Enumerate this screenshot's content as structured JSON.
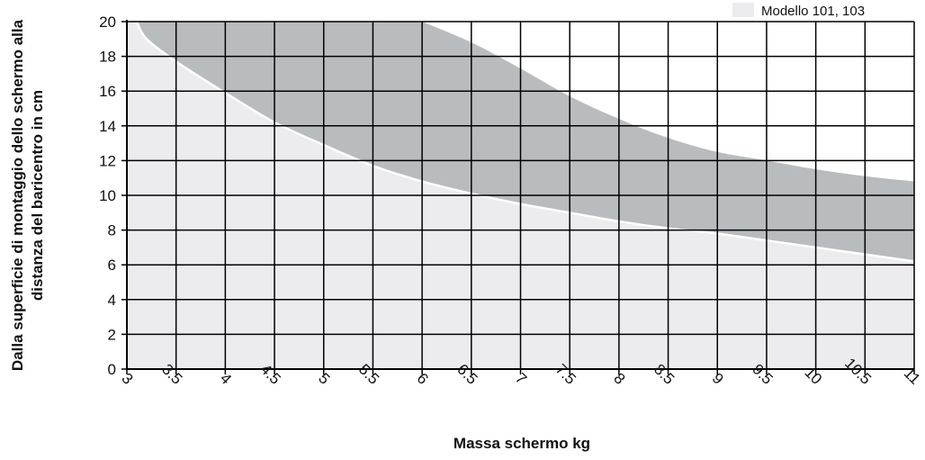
{
  "chart_data": {
    "type": "area",
    "xlabel": "Massa schermo kg",
    "ylabel_lines": [
      "Dalla superficie di montaggio dello schermo alla",
      "distanza del baricentro in cm"
    ],
    "xlim": [
      3,
      11
    ],
    "ylim": [
      0,
      20
    ],
    "x_ticks": [
      "3",
      "3.5",
      "4",
      "4.5",
      "5",
      "5.5",
      "6",
      "6.5",
      "7",
      "7.5",
      "8",
      "8.5",
      "9",
      "9.5",
      "10",
      "10.5",
      "11"
    ],
    "y_ticks": [
      "0",
      "2",
      "4",
      "6",
      "8",
      "10",
      "12",
      "14",
      "16",
      "18",
      "20"
    ],
    "grid": true,
    "legend": "top-right",
    "colors": {
      "light": "#ECECEF",
      "dark": "#B8BCBF",
      "grid": "#000000",
      "boundary": "#ffffff"
    },
    "series": [
      {
        "name": "Modello 101, 103",
        "region": "light",
        "upper_boundary": [
          [
            3.1,
            20
          ],
          [
            3.2,
            19.0
          ],
          [
            3.5,
            17.7
          ],
          [
            4,
            15.9
          ],
          [
            4.5,
            14.2
          ],
          [
            5,
            12.9
          ],
          [
            5.5,
            11.7
          ],
          [
            6,
            10.8
          ],
          [
            6.5,
            10.1
          ],
          [
            7,
            9.5
          ],
          [
            7.5,
            9.0
          ],
          [
            8,
            8.5
          ],
          [
            8.5,
            8.1
          ],
          [
            9,
            7.8
          ],
          [
            9.5,
            7.4
          ],
          [
            10,
            7.0
          ],
          [
            10.5,
            6.6
          ],
          [
            11,
            6.2
          ]
        ]
      },
      {
        "region": "dark",
        "upper_boundary": [
          [
            6,
            20
          ],
          [
            6.5,
            18.8
          ],
          [
            7,
            17.3
          ],
          [
            7.5,
            15.7
          ],
          [
            8,
            14.4
          ],
          [
            8.5,
            13.3
          ],
          [
            9,
            12.5
          ],
          [
            9.5,
            12.0
          ],
          [
            10,
            11.5
          ],
          [
            10.5,
            11.1
          ],
          [
            11,
            10.8
          ]
        ]
      }
    ]
  }
}
